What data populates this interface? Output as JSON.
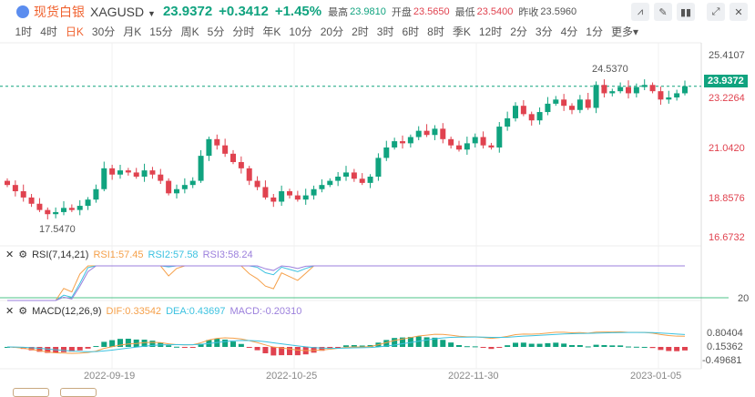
{
  "header": {
    "name": "现货白银",
    "symbol": "XAGUSD",
    "price": "23.9372",
    "change": "+0.3412",
    "change_pct": "+1.45%",
    "high_label": "最高",
    "high": "23.9810",
    "open_label": "开盘",
    "open": "23.5650",
    "low_label": "最低",
    "low": "23.5400",
    "prev_label": "昨收",
    "prev": "23.5960"
  },
  "periods": [
    "1时",
    "4时",
    "日K",
    "30分",
    "月K",
    "15分",
    "周K",
    "5分",
    "分时",
    "年K",
    "10分",
    "20分",
    "2时",
    "3时",
    "6时",
    "8时",
    "季K",
    "12时",
    "2分",
    "3分",
    "4分",
    "1分",
    "更多▾"
  ],
  "active_period": "日K",
  "colors": {
    "up": "#10a37f",
    "down": "#e0424f",
    "rsi1": "#f5a04a",
    "rsi2": "#3cc2e0",
    "rsi3": "#9b7fdc"
  },
  "rsi": {
    "title": "RSI(7,14,21)",
    "rsi1": "RSI1:57.45",
    "rsi2": "RSI2:57.58",
    "rsi3": "RSI3:58.24",
    "axis": "20"
  },
  "macd": {
    "title": "MACD(12,26,9)",
    "dif": "DIF:0.33542",
    "dea": "DEA:0.43697",
    "macd": "MACD:-0.20310",
    "axis": [
      "0.80404",
      "0.15362",
      "-0.49681"
    ]
  },
  "chart_data": {
    "type": "candlestick",
    "y_axis": [
      "25.4107",
      "23.2264",
      "21.0420",
      "18.8576",
      "16.6732"
    ],
    "ylim": [
      16.6732,
      25.4107
    ],
    "current": "23.9372",
    "max_label": "24.5370",
    "min_label": "17.5470",
    "x_labels": [
      "2022-09-19",
      "2022-10-25",
      "2022-11-30",
      "2023-01-05"
    ],
    "closes": [
      19.2,
      18.9,
      18.6,
      18.3,
      18.0,
      17.8,
      17.9,
      18.1,
      18.0,
      18.2,
      18.5,
      19.0,
      20.0,
      19.7,
      19.9,
      19.8,
      19.6,
      19.9,
      19.7,
      19.4,
      18.8,
      19.0,
      19.2,
      19.4,
      20.6,
      21.4,
      21.1,
      20.7,
      20.3,
      20.0,
      19.4,
      19.1,
      18.6,
      18.4,
      18.9,
      18.7,
      18.5,
      18.7,
      19.0,
      19.2,
      19.4,
      19.6,
      19.8,
      19.5,
      19.3,
      19.6,
      20.5,
      21.0,
      21.3,
      21.2,
      21.5,
      21.8,
      21.6,
      21.9,
      21.4,
      21.1,
      20.9,
      21.2,
      21.5,
      21.1,
      21.0,
      22.0,
      22.4,
      23.0,
      22.6,
      22.3,
      22.7,
      23.1,
      23.3,
      23.0,
      22.8,
      23.3,
      22.9,
      24.0,
      23.6,
      23.7,
      23.9,
      23.6,
      23.9,
      24.0,
      23.7,
      23.3,
      23.4,
      23.6,
      23.94
    ]
  }
}
